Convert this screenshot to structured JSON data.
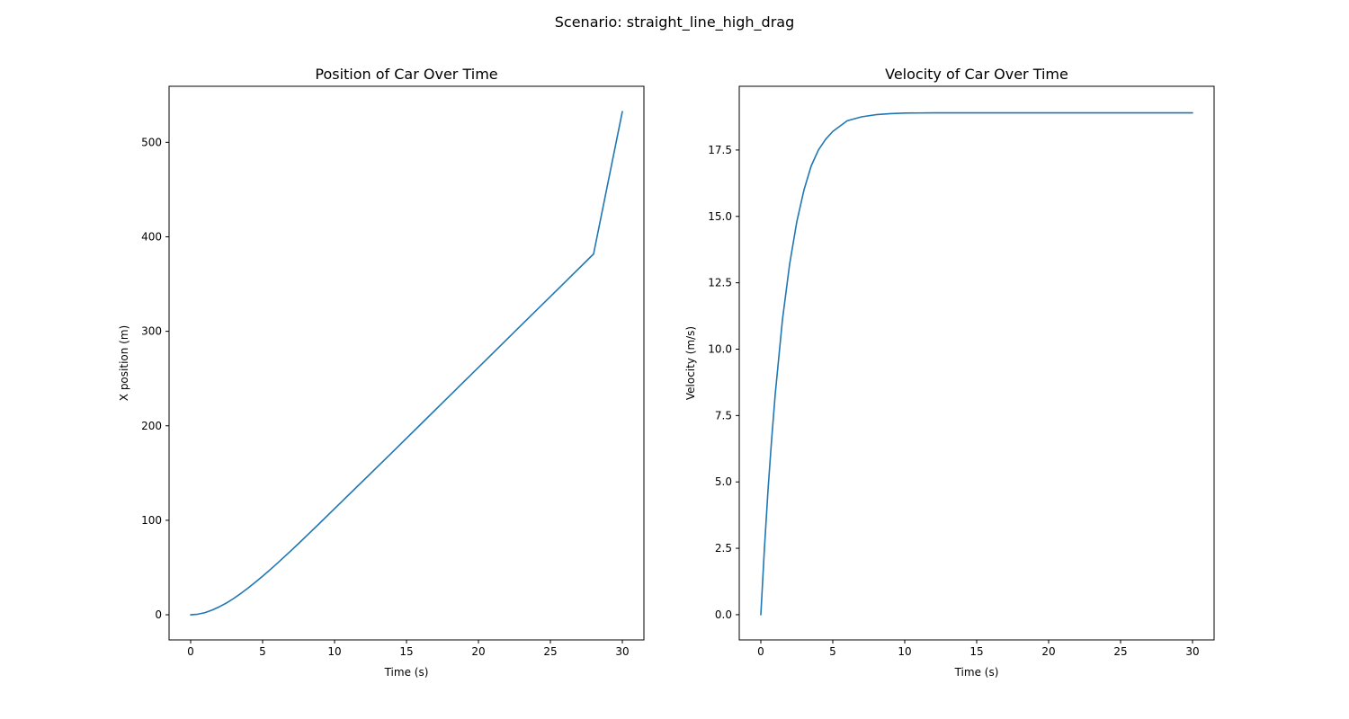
{
  "figure": {
    "suptitle": "Scenario: straight_line_high_drag"
  },
  "chart_data": [
    {
      "type": "line",
      "title": "Position of Car Over Time",
      "xlabel": "Time (s)",
      "ylabel": "X position (m)",
      "xlim": [
        -1.5,
        31.5
      ],
      "ylim": [
        -26.6,
        559.3
      ],
      "xticks": [
        0,
        5,
        10,
        15,
        20,
        25,
        30
      ],
      "yticks": [
        0,
        100,
        200,
        300,
        400,
        500
      ],
      "xtick_labels": [
        "0",
        "5",
        "10",
        "15",
        "20",
        "25",
        "30"
      ],
      "ytick_labels": [
        "0",
        "100",
        "200",
        "300",
        "400",
        "500"
      ],
      "grid": false,
      "series": [
        {
          "color": "#1f77b4",
          "x": [
            0,
            0.5,
            1,
            1.5,
            2,
            2.5,
            3,
            3.5,
            4,
            4.5,
            5,
            5.5,
            6,
            6.5,
            7,
            7.5,
            8,
            9,
            10,
            12,
            14,
            16,
            18,
            20,
            22,
            24,
            26,
            28,
            30
          ],
          "y": [
            0,
            0.6,
            2.3,
            5,
            8.5,
            12.6,
            17.4,
            22.7,
            28.4,
            34.5,
            40.8,
            47.4,
            54.2,
            61.2,
            68.2,
            75.4,
            82.7,
            97.4,
            112.3,
            142,
            171.8,
            201.8,
            231.8,
            261.8,
            291.8,
            321.8,
            351.8,
            381.8,
            532.5
          ]
        }
      ]
    },
    {
      "type": "line",
      "title": "Velocity of Car Over Time",
      "xlabel": "Time (s)",
      "ylabel": "Velocity (m/s)",
      "xlim": [
        -1.5,
        31.5
      ],
      "ylim": [
        -0.95,
        19.9
      ],
      "xticks": [
        0,
        5,
        10,
        15,
        20,
        25,
        30
      ],
      "yticks": [
        0,
        2.5,
        5,
        7.5,
        10,
        12.5,
        15,
        17.5
      ],
      "xtick_labels": [
        "0",
        "5",
        "10",
        "15",
        "20",
        "25",
        "30"
      ],
      "ytick_labels": [
        "0.0",
        "2.5",
        "5.0",
        "7.5",
        "10.0",
        "12.5",
        "15.0",
        "17.5"
      ],
      "grid": false,
      "series": [
        {
          "color": "#1f77b4",
          "x": [
            0,
            0.25,
            0.5,
            0.75,
            1,
            1.5,
            2,
            2.5,
            3,
            3.5,
            4,
            4.5,
            5,
            6,
            7,
            8,
            9,
            10,
            12,
            15,
            20,
            25,
            30
          ],
          "y": [
            0,
            2.5,
            4.7,
            6.6,
            8.3,
            11.1,
            13.2,
            14.8,
            16,
            16.9,
            17.5,
            17.9,
            18.2,
            18.6,
            18.75,
            18.83,
            18.87,
            18.89,
            18.9,
            18.9,
            18.9,
            18.9,
            18.9
          ]
        }
      ]
    }
  ]
}
